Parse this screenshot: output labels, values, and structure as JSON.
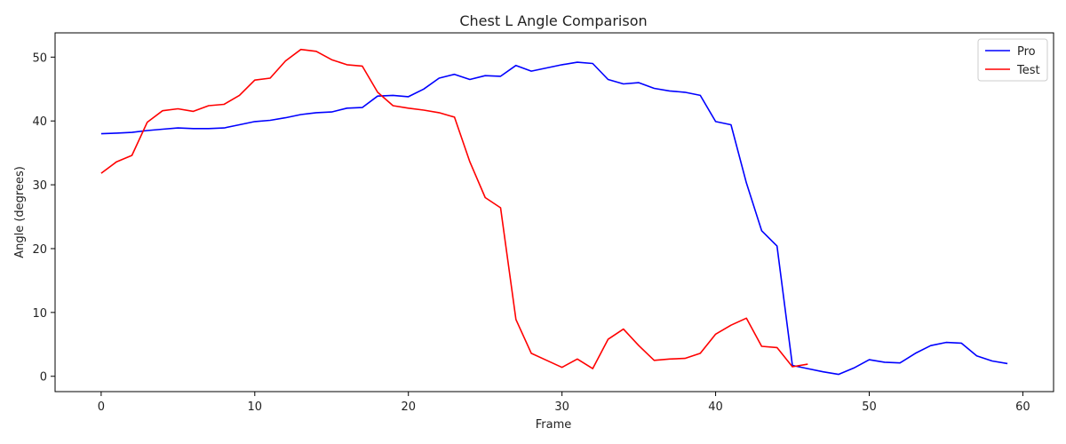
{
  "chart_data": {
    "type": "line",
    "title": "Chest L Angle Comparison",
    "xlabel": "Frame",
    "ylabel": "Angle (degrees)",
    "xlim": [
      -3,
      62
    ],
    "ylim": [
      -2.4,
      53.8
    ],
    "xticks": [
      0,
      10,
      20,
      30,
      40,
      50,
      60
    ],
    "yticks": [
      0,
      10,
      20,
      30,
      40,
      50
    ],
    "grid": false,
    "legend_position": "top-right",
    "series": [
      {
        "name": "Pro",
        "color": "#0000ff",
        "x": [
          0,
          1,
          2,
          3,
          4,
          5,
          6,
          7,
          8,
          9,
          10,
          11,
          12,
          13,
          14,
          15,
          16,
          17,
          18,
          19,
          20,
          21,
          22,
          23,
          24,
          25,
          26,
          27,
          28,
          29,
          30,
          31,
          32,
          33,
          34,
          35,
          36,
          37,
          38,
          39,
          40,
          41,
          42,
          43,
          44,
          45,
          46,
          47,
          48,
          49,
          50,
          51,
          52,
          53,
          54,
          55,
          56,
          57,
          58,
          59
        ],
        "values": [
          38.0,
          38.1,
          38.2,
          38.5,
          38.7,
          38.9,
          38.8,
          38.8,
          38.9,
          39.4,
          39.9,
          40.1,
          40.5,
          41.0,
          41.3,
          41.4,
          42.0,
          42.1,
          43.9,
          44.0,
          43.8,
          45.0,
          46.7,
          47.3,
          46.5,
          47.1,
          47.0,
          48.7,
          47.8,
          48.3,
          48.8,
          49.2,
          49.0,
          46.5,
          45.8,
          46.0,
          45.1,
          44.7,
          44.5,
          44.0,
          39.9,
          39.4,
          30.3,
          22.8,
          20.4,
          1.7,
          1.2,
          0.7,
          0.3,
          1.3,
          2.6,
          2.2,
          2.1,
          3.6,
          4.8,
          5.3,
          5.2,
          3.2,
          2.4,
          2.0
        ]
      },
      {
        "name": "Test",
        "color": "#ff0000",
        "x": [
          0,
          1,
          2,
          3,
          4,
          5,
          6,
          7,
          8,
          9,
          10,
          11,
          12,
          13,
          14,
          15,
          16,
          17,
          18,
          19,
          20,
          21,
          22,
          23,
          24,
          25,
          26,
          27,
          28,
          29,
          30,
          31,
          32,
          33,
          34,
          35,
          36,
          37,
          38,
          39,
          40,
          41,
          42,
          43,
          44,
          45,
          46
        ],
        "values": [
          31.8,
          33.6,
          34.6,
          39.8,
          41.6,
          41.9,
          41.5,
          42.4,
          42.6,
          44.0,
          46.4,
          46.7,
          49.4,
          51.2,
          50.9,
          49.6,
          48.8,
          48.6,
          44.5,
          42.4,
          42.0,
          41.7,
          41.3,
          40.6,
          33.6,
          28.0,
          26.4,
          8.9,
          3.6,
          2.5,
          1.4,
          2.7,
          1.2,
          5.8,
          7.4,
          4.8,
          2.5,
          2.7,
          2.8,
          3.6,
          6.6,
          8.0,
          9.1,
          4.7,
          4.5,
          1.5,
          1.9
        ]
      }
    ]
  }
}
